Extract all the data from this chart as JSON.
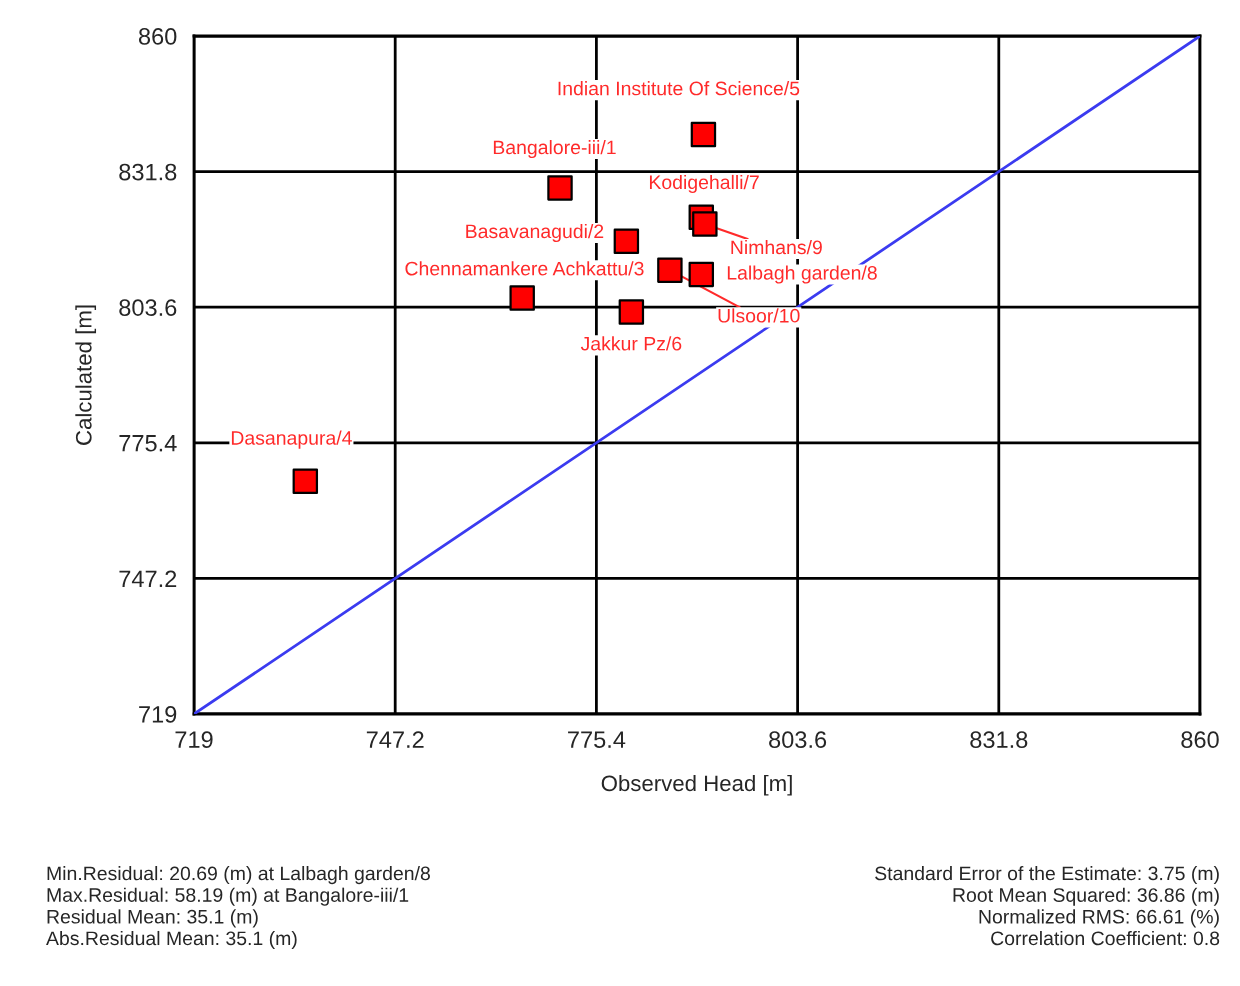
{
  "chart_data": {
    "type": "scatter",
    "xlabel": "Observed Head [m]",
    "ylabel": "Calculated [m]",
    "xlim": [
      719,
      860
    ],
    "ylim": [
      719,
      860
    ],
    "xticks": [
      719,
      747.2,
      775.4,
      803.6,
      831.8,
      860
    ],
    "yticks": [
      719,
      747.2,
      775.4,
      803.6,
      831.8,
      860
    ],
    "grid": true,
    "marker": "square",
    "series": [
      {
        "type": "scatter",
        "color": "#ff0000",
        "x": [
          770.3,
          779.6,
          765.0,
          734.6,
          790.4,
          780.3,
          790.1,
          790.1,
          790.6,
          785.7
        ],
        "values": [
          828.4,
          817.3,
          805.5,
          767.4,
          839.5,
          802.6,
          822.3,
          810.4,
          820.9,
          811.3
        ]
      },
      {
        "type": "line",
        "color": "#3b3bf0",
        "x": [
          719,
          860
        ],
        "values": [
          719,
          860
        ],
        "marker": "none"
      }
    ],
    "annotations": [
      {
        "text": "Bangalore-iii/1",
        "x": 770.3,
        "y": 828.4
      },
      {
        "text": "Basavanagudi/2",
        "x": 779.6,
        "y": 817.3
      },
      {
        "text": "Chennamankere Achkattu/3",
        "x": 765.0,
        "y": 805.5
      },
      {
        "text": "Dasanapura/4",
        "x": 734.6,
        "y": 767.4
      },
      {
        "text": "Indian Institute Of Science/5",
        "x": 790.4,
        "y": 839.5
      },
      {
        "text": "Jakkur Pz/6",
        "x": 780.3,
        "y": 802.6
      },
      {
        "text": "Kodigehalli/7",
        "x": 790.1,
        "y": 822.3
      },
      {
        "text": "Lalbagh garden/8",
        "x": 790.1,
        "y": 810.4
      },
      {
        "text": "Nimhans/9",
        "x": 790.6,
        "y": 820.9
      },
      {
        "text": "Ulsoor/10",
        "x": 785.7,
        "y": 811.3
      },
      "Min.Residual: 20.69 (m) at Lalbagh garden/8\nMax.Residual: 58.19 (m) at Bangalore-iii/1\nResidual Mean: 35.1 (m)\nAbs.Residual Mean: 35.1 (m)",
      "Standard Error of the Estimate: 3.75 (m)\nRoot Mean Squared: 36.86 (m)\nNormalized RMS: 66.61 (%)\nCorrelation Coefficient: 0.8"
    ]
  }
}
